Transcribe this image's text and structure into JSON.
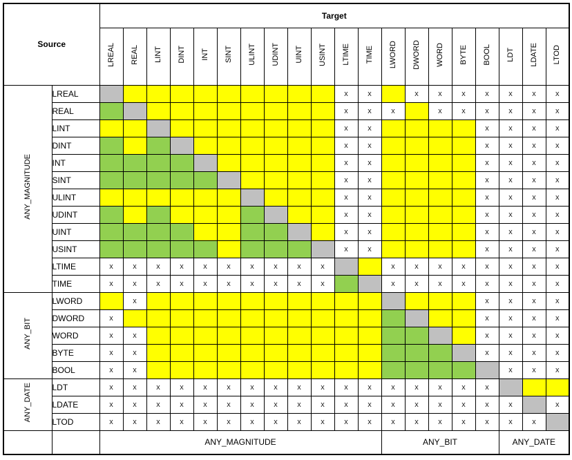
{
  "header": {
    "source_label": "Source",
    "target_label": "Target"
  },
  "columns": [
    "LREAL",
    "REAL",
    "LINT",
    "DINT",
    "INT",
    "SINT",
    "ULINT",
    "UDINT",
    "UINT",
    "USINT",
    "LTIME",
    "TIME",
    "LWORD",
    "DWORD",
    "WORD",
    "BYTE",
    "BOOL",
    "LDT",
    "LDATE",
    "LTOD"
  ],
  "groups": [
    {
      "label": "ANY_MAGNITUDE",
      "span": 12
    },
    {
      "label": "ANY_BIT",
      "span": 5
    },
    {
      "label": "ANY_DATE",
      "span": 3
    }
  ],
  "legend": {
    "codes": {
      "s": "gray",
      "e": "yellow",
      "i": "green",
      "x": "x-mark"
    },
    "not_possible_mark": "x"
  },
  "colors": {
    "same": "#C0C0C0",
    "explicit": "#FFFF00",
    "implicit": "#92D050",
    "none": "#FFFFFF",
    "border": "#000000"
  },
  "matrix": {
    "rows": [
      {
        "source": "LREAL",
        "cells": [
          "s",
          "e",
          "e",
          "e",
          "e",
          "e",
          "e",
          "e",
          "e",
          "e",
          "x",
          "x",
          "e",
          "x",
          "x",
          "x",
          "x",
          "x",
          "x",
          "x"
        ]
      },
      {
        "source": "REAL",
        "cells": [
          "i",
          "s",
          "e",
          "e",
          "e",
          "e",
          "e",
          "e",
          "e",
          "e",
          "x",
          "x",
          "x",
          "e",
          "x",
          "x",
          "x",
          "x",
          "x",
          "x"
        ]
      },
      {
        "source": "LINT",
        "cells": [
          "e",
          "e",
          "s",
          "e",
          "e",
          "e",
          "e",
          "e",
          "e",
          "e",
          "x",
          "x",
          "e",
          "e",
          "e",
          "e",
          "x",
          "x",
          "x",
          "x"
        ]
      },
      {
        "source": "DINT",
        "cells": [
          "i",
          "e",
          "i",
          "s",
          "e",
          "e",
          "e",
          "e",
          "e",
          "e",
          "x",
          "x",
          "e",
          "e",
          "e",
          "e",
          "x",
          "x",
          "x",
          "x"
        ]
      },
      {
        "source": "INT",
        "cells": [
          "i",
          "i",
          "i",
          "i",
          "s",
          "e",
          "e",
          "e",
          "e",
          "e",
          "x",
          "x",
          "e",
          "e",
          "e",
          "e",
          "x",
          "x",
          "x",
          "x"
        ]
      },
      {
        "source": "SINT",
        "cells": [
          "i",
          "i",
          "i",
          "i",
          "i",
          "s",
          "e",
          "e",
          "e",
          "e",
          "x",
          "x",
          "e",
          "e",
          "e",
          "e",
          "x",
          "x",
          "x",
          "x"
        ]
      },
      {
        "source": "ULINT",
        "cells": [
          "e",
          "e",
          "e",
          "e",
          "e",
          "e",
          "s",
          "e",
          "e",
          "e",
          "x",
          "x",
          "e",
          "e",
          "e",
          "e",
          "x",
          "x",
          "x",
          "x"
        ]
      },
      {
        "source": "UDINT",
        "cells": [
          "i",
          "e",
          "i",
          "e",
          "e",
          "e",
          "i",
          "s",
          "e",
          "e",
          "x",
          "x",
          "e",
          "e",
          "e",
          "e",
          "x",
          "x",
          "x",
          "x"
        ]
      },
      {
        "source": "UINT",
        "cells": [
          "i",
          "i",
          "i",
          "i",
          "e",
          "e",
          "i",
          "i",
          "s",
          "e",
          "x",
          "x",
          "e",
          "e",
          "e",
          "e",
          "x",
          "x",
          "x",
          "x"
        ]
      },
      {
        "source": "USINT",
        "cells": [
          "i",
          "i",
          "i",
          "i",
          "i",
          "e",
          "i",
          "i",
          "i",
          "s",
          "x",
          "x",
          "e",
          "e",
          "e",
          "e",
          "x",
          "x",
          "x",
          "x"
        ]
      },
      {
        "source": "LTIME",
        "cells": [
          "x",
          "x",
          "x",
          "x",
          "x",
          "x",
          "x",
          "x",
          "x",
          "x",
          "s",
          "e",
          "x",
          "x",
          "x",
          "x",
          "x",
          "x",
          "x",
          "x"
        ]
      },
      {
        "source": "TIME",
        "cells": [
          "x",
          "x",
          "x",
          "x",
          "x",
          "x",
          "x",
          "x",
          "x",
          "x",
          "i",
          "s",
          "x",
          "x",
          "x",
          "x",
          "x",
          "x",
          "x",
          "x"
        ]
      },
      {
        "source": "LWORD",
        "cells": [
          "e",
          "x",
          "e",
          "e",
          "e",
          "e",
          "e",
          "e",
          "e",
          "e",
          "e",
          "e",
          "s",
          "e",
          "e",
          "e",
          "x",
          "x",
          "x",
          "x"
        ]
      },
      {
        "source": "DWORD",
        "cells": [
          "x",
          "e",
          "e",
          "e",
          "e",
          "e",
          "e",
          "e",
          "e",
          "e",
          "e",
          "e",
          "i",
          "s",
          "e",
          "e",
          "x",
          "x",
          "x",
          "x"
        ]
      },
      {
        "source": "WORD",
        "cells": [
          "x",
          "x",
          "e",
          "e",
          "e",
          "e",
          "e",
          "e",
          "e",
          "e",
          "e",
          "e",
          "i",
          "i",
          "s",
          "e",
          "x",
          "x",
          "x",
          "x"
        ]
      },
      {
        "source": "BYTE",
        "cells": [
          "x",
          "x",
          "e",
          "e",
          "e",
          "e",
          "e",
          "e",
          "e",
          "e",
          "e",
          "e",
          "i",
          "i",
          "i",
          "s",
          "x",
          "x",
          "x",
          "x"
        ]
      },
      {
        "source": "BOOL",
        "cells": [
          "x",
          "x",
          "e",
          "e",
          "e",
          "e",
          "e",
          "e",
          "e",
          "e",
          "e",
          "e",
          "i",
          "i",
          "i",
          "i",
          "s",
          "x",
          "x",
          "x"
        ]
      },
      {
        "source": "LDT",
        "cells": [
          "x",
          "x",
          "x",
          "x",
          "x",
          "x",
          "x",
          "x",
          "x",
          "x",
          "x",
          "x",
          "x",
          "x",
          "x",
          "x",
          "x",
          "s",
          "e",
          "e"
        ]
      },
      {
        "source": "LDATE",
        "cells": [
          "x",
          "x",
          "x",
          "x",
          "x",
          "x",
          "x",
          "x",
          "x",
          "x",
          "x",
          "x",
          "x",
          "x",
          "x",
          "x",
          "x",
          "x",
          "s",
          "x"
        ]
      },
      {
        "source": "LTOD",
        "cells": [
          "x",
          "x",
          "x",
          "x",
          "x",
          "x",
          "x",
          "x",
          "x",
          "x",
          "x",
          "x",
          "x",
          "x",
          "x",
          "x",
          "x",
          "x",
          "x",
          "s"
        ]
      }
    ]
  }
}
